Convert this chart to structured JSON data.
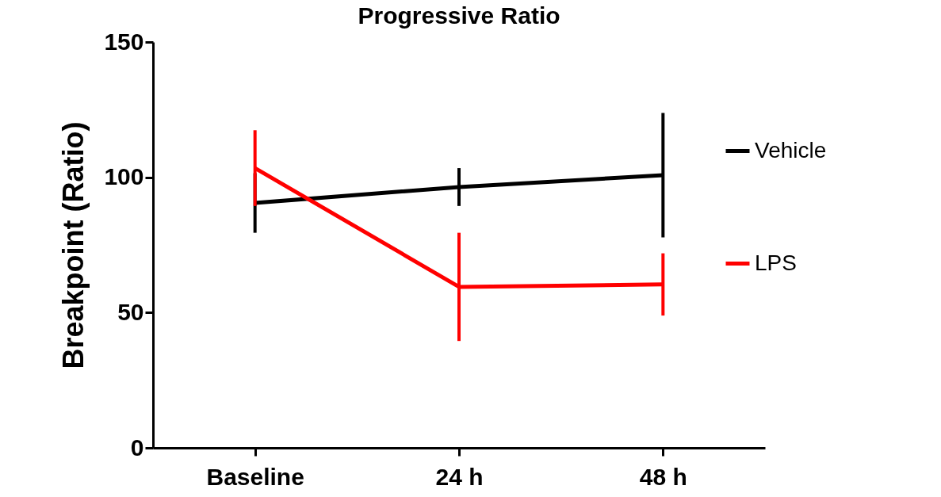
{
  "chart_data": {
    "type": "line",
    "title": "Progressive Ratio",
    "ylabel": "Breakpoint (Ratio)",
    "categories": [
      "Baseline",
      "24 h",
      "48 h"
    ],
    "series": [
      {
        "name": "Vehicle",
        "color": "#000000",
        "values": [
          90.5,
          96.4,
          100.8
        ],
        "errors": [
          11,
          7,
          23
        ]
      },
      {
        "name": "LPS",
        "color": "#ff0000",
        "values": [
          103.4,
          59.5,
          60.4
        ],
        "errors": [
          14,
          20,
          11.5
        ]
      }
    ],
    "ylim": [
      0,
      150
    ],
    "yticks": [
      0,
      50,
      100,
      150
    ],
    "grid": false,
    "legend": "right",
    "marker": "none",
    "line_style": "solid"
  }
}
